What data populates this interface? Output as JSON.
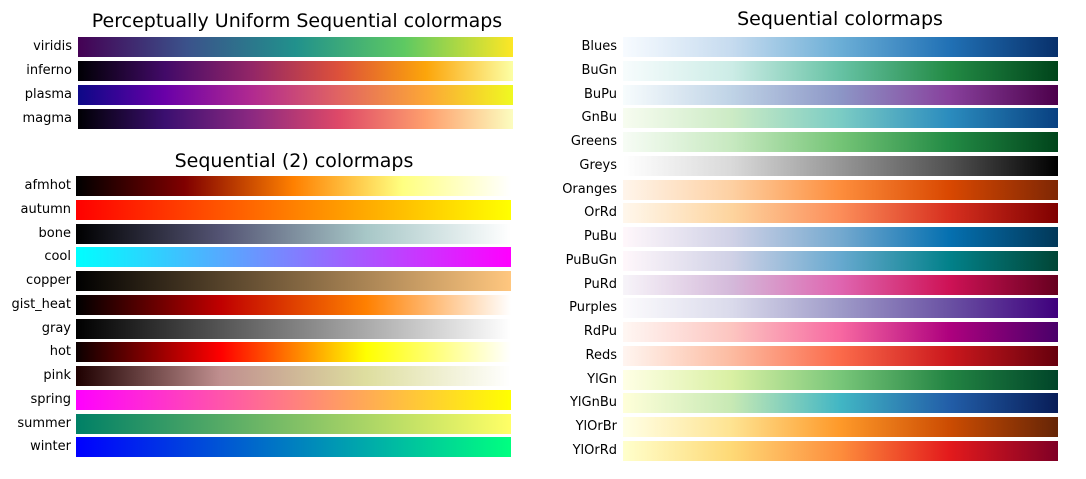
{
  "chart_data": [
    {
      "type": "colormap",
      "title": "Perceptually Uniform Sequential colormaps",
      "colormaps": [
        {
          "name": "viridis",
          "colors": [
            "#440154",
            "#3b528b",
            "#21918c",
            "#5ec962",
            "#fde725"
          ]
        },
        {
          "name": "inferno",
          "colors": [
            "#000004",
            "#420a68",
            "#932667",
            "#dd513a",
            "#fca50a",
            "#fcffa4"
          ]
        },
        {
          "name": "plasma",
          "colors": [
            "#0d0887",
            "#6a00a8",
            "#b12a90",
            "#e16462",
            "#fca636",
            "#f0f921"
          ]
        },
        {
          "name": "magma",
          "colors": [
            "#000004",
            "#3b0f70",
            "#8c2981",
            "#de4968",
            "#fe9f6d",
            "#fcfdbf"
          ]
        }
      ]
    },
    {
      "type": "colormap",
      "title": "Sequential (2) colormaps",
      "colormaps": [
        {
          "name": "afmhot",
          "colors": [
            "#000000",
            "#800000",
            "#ff8000",
            "#ffff80",
            "#ffffff"
          ]
        },
        {
          "name": "autumn",
          "colors": [
            "#ff0000",
            "#ff8000",
            "#ffff00"
          ]
        },
        {
          "name": "bone",
          "colors": [
            "#000000",
            "#545474",
            "#a7c7c7",
            "#ffffff"
          ]
        },
        {
          "name": "cool",
          "colors": [
            "#00ffff",
            "#ff00ff"
          ]
        },
        {
          "name": "copper",
          "colors": [
            "#000000",
            "#ffc77f"
          ]
        },
        {
          "name": "gist_heat",
          "colors": [
            "#000000",
            "#c00000",
            "#ff8000",
            "#ffffff"
          ]
        },
        {
          "name": "gray",
          "colors": [
            "#000000",
            "#ffffff"
          ]
        },
        {
          "name": "hot",
          "colors": [
            "#0b0000",
            "#ff0000",
            "#ffff00",
            "#ffffff"
          ]
        },
        {
          "name": "pink",
          "colors": [
            "#1e0000",
            "#c08f8f",
            "#dede9f",
            "#ffffff"
          ]
        },
        {
          "name": "spring",
          "colors": [
            "#ff00ff",
            "#ffff00"
          ]
        },
        {
          "name": "summer",
          "colors": [
            "#008066",
            "#ffff66"
          ]
        },
        {
          "name": "winter",
          "colors": [
            "#0000ff",
            "#00ff80"
          ]
        }
      ]
    },
    {
      "type": "colormap",
      "title": "Sequential colormaps",
      "colormaps": [
        {
          "name": "Blues",
          "colors": [
            "#f7fbff",
            "#c6dbef",
            "#6baed6",
            "#2171b5",
            "#08306b"
          ]
        },
        {
          "name": "BuGn",
          "colors": [
            "#f7fcfd",
            "#ccece6",
            "#66c2a4",
            "#238b45",
            "#00441b"
          ]
        },
        {
          "name": "BuPu",
          "colors": [
            "#f7fcfd",
            "#bfd3e6",
            "#8c96c6",
            "#88419d",
            "#4d004b"
          ]
        },
        {
          "name": "GnBu",
          "colors": [
            "#f7fcf0",
            "#ccebc5",
            "#7bccc4",
            "#2b8cbe",
            "#084081"
          ]
        },
        {
          "name": "Greens",
          "colors": [
            "#f7fcf5",
            "#c7e9c0",
            "#74c476",
            "#238b45",
            "#00441b"
          ]
        },
        {
          "name": "Greys",
          "colors": [
            "#ffffff",
            "#d9d9d9",
            "#969696",
            "#525252",
            "#000000"
          ]
        },
        {
          "name": "Oranges",
          "colors": [
            "#fff5eb",
            "#fdd0a2",
            "#fd8d3c",
            "#d94801",
            "#7f2704"
          ]
        },
        {
          "name": "OrRd",
          "colors": [
            "#fff7ec",
            "#fdd49e",
            "#fc8d59",
            "#d7301f",
            "#7f0000"
          ]
        },
        {
          "name": "PuBu",
          "colors": [
            "#fff7fb",
            "#d0d1e6",
            "#74a9cf",
            "#0570b0",
            "#023858"
          ]
        },
        {
          "name": "PuBuGn",
          "colors": [
            "#fff7fb",
            "#d0d1e6",
            "#67a9cf",
            "#02818a",
            "#014636"
          ]
        },
        {
          "name": "PuRd",
          "colors": [
            "#f7f4f9",
            "#d4b9da",
            "#df65b0",
            "#ce1256",
            "#67001f"
          ]
        },
        {
          "name": "Purples",
          "colors": [
            "#fcfbfd",
            "#dadaeb",
            "#9e9ac8",
            "#6a51a3",
            "#3f007d"
          ]
        },
        {
          "name": "RdPu",
          "colors": [
            "#fff7f3",
            "#fcc5c0",
            "#f768a1",
            "#ae017e",
            "#49006a"
          ]
        },
        {
          "name": "Reds",
          "colors": [
            "#fff5f0",
            "#fcbba1",
            "#fb6a4a",
            "#cb181d",
            "#67000d"
          ]
        },
        {
          "name": "YlGn",
          "colors": [
            "#ffffe5",
            "#d9f0a3",
            "#78c679",
            "#238443",
            "#004529"
          ]
        },
        {
          "name": "YlGnBu",
          "colors": [
            "#ffffd9",
            "#c7e9b4",
            "#41b6c4",
            "#225ea8",
            "#081d58"
          ]
        },
        {
          "name": "YlOrBr",
          "colors": [
            "#ffffe5",
            "#fee391",
            "#fe9929",
            "#cc4c02",
            "#662506"
          ]
        },
        {
          "name": "YlOrRd",
          "colors": [
            "#ffffcc",
            "#fed976",
            "#fd8d3c",
            "#e31a1c",
            "#800026"
          ]
        }
      ]
    }
  ]
}
